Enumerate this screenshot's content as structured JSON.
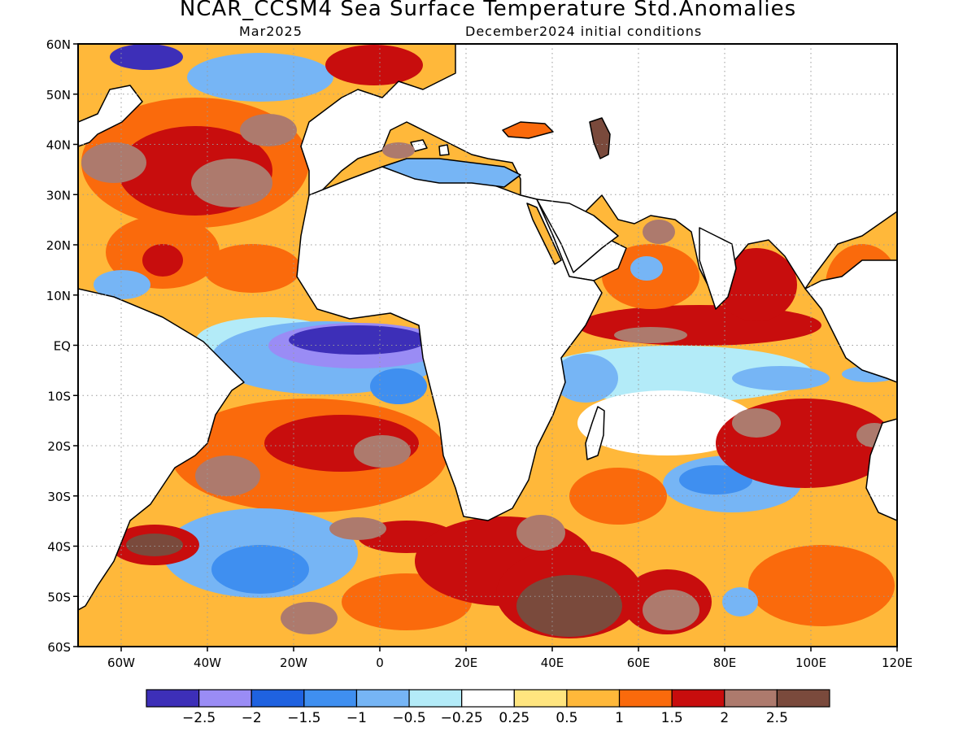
{
  "title": "NCAR_CCSM4 Sea Surface Temperature Std.Anomalies",
  "valid_month": "Mar2025",
  "init_label": "December2024 initial conditions",
  "lat_labels": [
    "60N",
    "50N",
    "40N",
    "30N",
    "20N",
    "10N",
    "EQ",
    "10S",
    "20S",
    "30S",
    "40S",
    "50S",
    "60S"
  ],
  "lon_labels": [
    "60W",
    "40W",
    "20W",
    "0",
    "20E",
    "40E",
    "60E",
    "80E",
    "100E",
    "120E"
  ],
  "colorbar": {
    "colors": [
      "#3d2fb8",
      "#9a8cf5",
      "#1f62e0",
      "#3f8ff0",
      "#76b5f5",
      "#b3ebf8",
      "#ffffff",
      "#ffe57f",
      "#ffb83a",
      "#fa6a0c",
      "#c80d0d",
      "#ad7a6d",
      "#7a4a3c"
    ],
    "labels": [
      "−2.5",
      "−2",
      "−1.5",
      "−1",
      "−0.5",
      "−0.25",
      "0.25",
      "0.5",
      "1",
      "1.5",
      "2",
      "2.5"
    ]
  },
  "palette": {
    "strong_cold": "#3d2fb8",
    "cold": "#76b5f5",
    "near_zero": "#ffffff",
    "warm": "#ffb83a",
    "hot": "#fa6a0c",
    "very_hot": "#c80d0d",
    "extreme": "#7a4a3c",
    "land": "#ffffff",
    "coast": "#000000"
  }
}
